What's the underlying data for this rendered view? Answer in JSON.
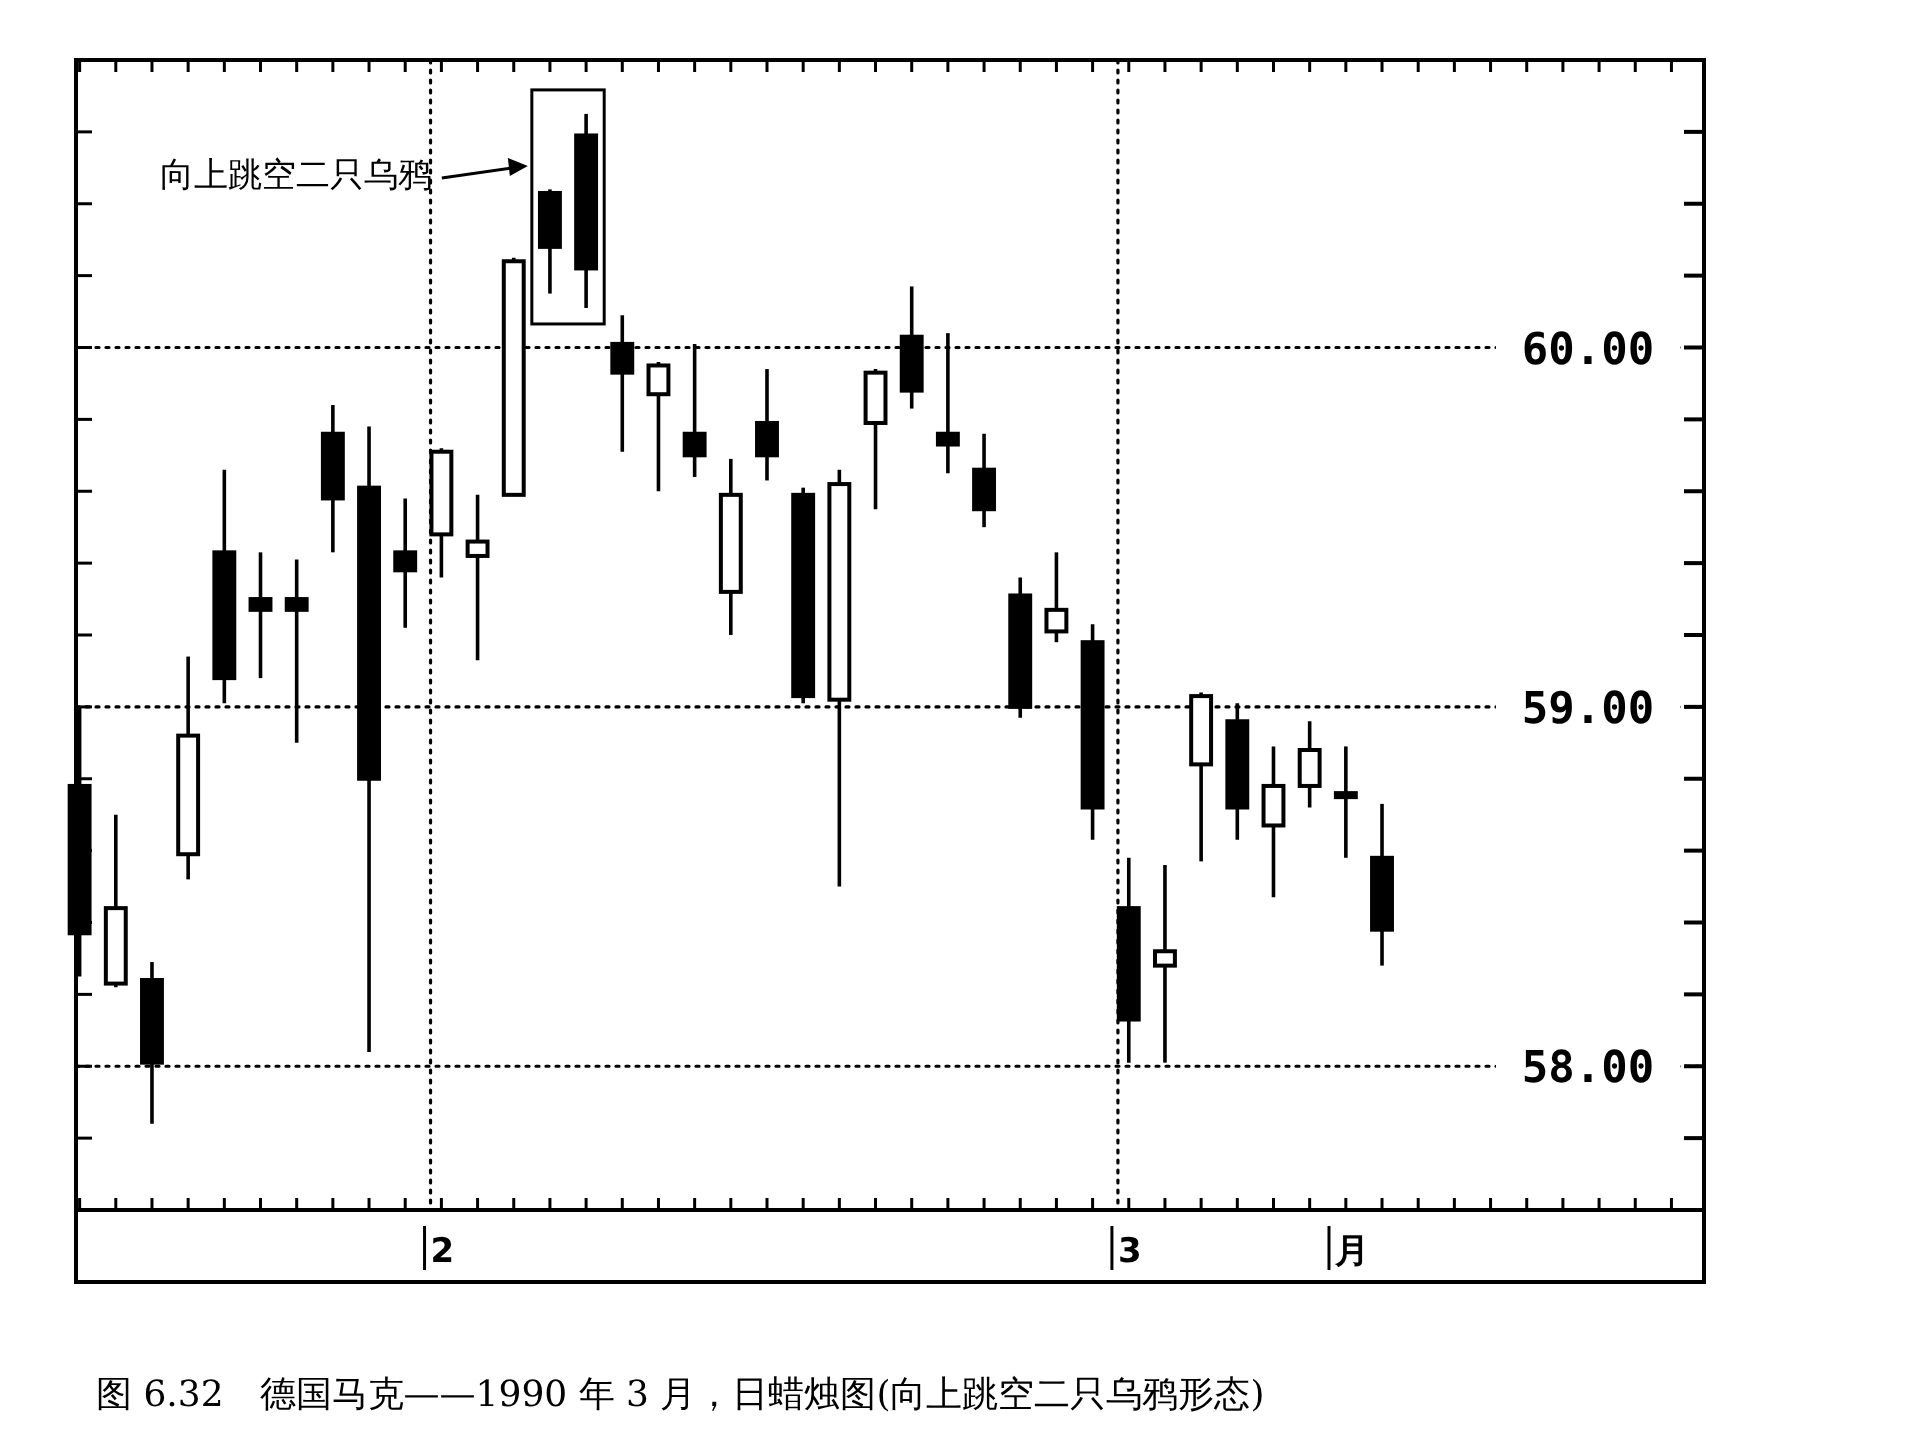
{
  "chart_data": {
    "type": "candlestick",
    "title": "图 6.32　德国马克——1990 年 3 月，日蜡烛图(向上跳空二只乌鸦形态)",
    "categories": [
      null,
      null,
      null,
      null,
      null,
      null,
      null,
      null,
      null,
      null,
      "2",
      null,
      null,
      null,
      null,
      null,
      null,
      null,
      null,
      null,
      null,
      null,
      null,
      null,
      null,
      null,
      null,
      null,
      null,
      "3",
      null,
      null,
      null,
      null,
      null,
      "月",
      null,
      null,
      null,
      null,
      null,
      null,
      null,
      null,
      null
    ],
    "ohlc": [
      [
        58.78,
        59.0,
        58.25,
        58.37
      ],
      [
        58.23,
        58.7,
        58.22,
        58.44
      ],
      [
        58.24,
        58.29,
        57.84,
        58.01
      ],
      [
        58.59,
        59.14,
        58.52,
        58.92
      ],
      [
        59.43,
        59.66,
        59.01,
        59.08
      ],
      [
        59.3,
        59.43,
        59.08,
        59.27
      ],
      [
        59.3,
        59.41,
        58.9,
        59.27
      ],
      [
        59.76,
        59.84,
        59.43,
        59.58
      ],
      [
        59.61,
        59.78,
        58.04,
        58.8
      ],
      [
        59.43,
        59.58,
        59.22,
        59.38
      ],
      [
        59.48,
        59.72,
        59.36,
        59.71
      ],
      [
        59.42,
        59.59,
        59.13,
        59.46
      ],
      [
        59.59,
        60.25,
        59.59,
        60.24
      ],
      [
        60.43,
        60.44,
        60.15,
        60.28
      ],
      [
        60.59,
        60.65,
        60.11,
        60.22
      ],
      [
        60.01,
        60.09,
        59.71,
        59.93
      ],
      [
        59.87,
        59.96,
        59.6,
        59.95
      ],
      [
        59.76,
        60.01,
        59.64,
        59.7
      ],
      [
        59.32,
        59.69,
        59.2,
        59.59
      ],
      [
        59.79,
        59.94,
        59.63,
        59.7
      ],
      [
        59.59,
        59.61,
        59.01,
        59.03
      ],
      [
        59.02,
        59.66,
        58.5,
        59.62
      ],
      [
        59.79,
        59.94,
        59.55,
        59.93
      ],
      [
        60.03,
        60.17,
        59.83,
        59.88
      ],
      [
        59.76,
        60.04,
        59.65,
        59.73
      ],
      [
        59.66,
        59.76,
        59.5,
        59.55
      ],
      [
        59.31,
        59.36,
        58.97,
        59.0
      ],
      [
        59.21,
        59.43,
        59.18,
        59.27
      ],
      [
        59.18,
        59.23,
        58.63,
        58.72
      ],
      [
        58.44,
        58.58,
        58.01,
        58.13
      ],
      [
        58.28,
        58.56,
        58.01,
        58.32
      ],
      [
        58.84,
        59.04,
        58.57,
        59.03
      ],
      [
        58.96,
        59.01,
        58.63,
        58.72
      ],
      [
        58.67,
        58.89,
        58.47,
        58.78
      ],
      [
        58.78,
        58.96,
        58.72,
        58.88
      ],
      [
        58.76,
        58.89,
        58.58,
        58.75
      ],
      [
        58.58,
        58.73,
        58.28,
        58.38
      ],
      null,
      null,
      null,
      null,
      null,
      null,
      null,
      null
    ],
    "ylim": [
      57.6,
      60.8
    ],
    "yticks": [
      {
        "value": 57.6,
        "label": null
      },
      {
        "value": 57.8,
        "label": null
      },
      {
        "value": 58,
        "label": "58.00"
      },
      {
        "value": 58.2,
        "label": null
      },
      {
        "value": 58.4,
        "label": null
      },
      {
        "value": 58.6,
        "label": null
      },
      {
        "value": 58.8,
        "label": null
      },
      {
        "value": 59,
        "label": "59.00"
      },
      {
        "value": 59.2,
        "label": null
      },
      {
        "value": 59.4,
        "label": null
      },
      {
        "value": 59.6,
        "label": null
      },
      {
        "value": 59.8,
        "label": null
      },
      {
        "value": 60,
        "label": "60.00"
      },
      {
        "value": 60.2,
        "label": null
      },
      {
        "value": 60.4,
        "label": null
      },
      {
        "value": 60.6,
        "label": null
      },
      {
        "value": 60.8,
        "label": null
      }
    ],
    "ref_lines": [
      {
        "axis": "x",
        "value": "2",
        "line_style": "dotted"
      },
      {
        "axis": "x",
        "value": "3",
        "line_style": "dotted"
      },
      {
        "axis": "y",
        "value": 58,
        "line_style": "dotted"
      },
      {
        "axis": "y",
        "value": 59,
        "line_style": "dotted"
      },
      {
        "axis": "y",
        "value": 60,
        "line_style": "dotted"
      }
    ],
    "annotations": [
      "向上跳空二只乌鸦"
    ]
  }
}
